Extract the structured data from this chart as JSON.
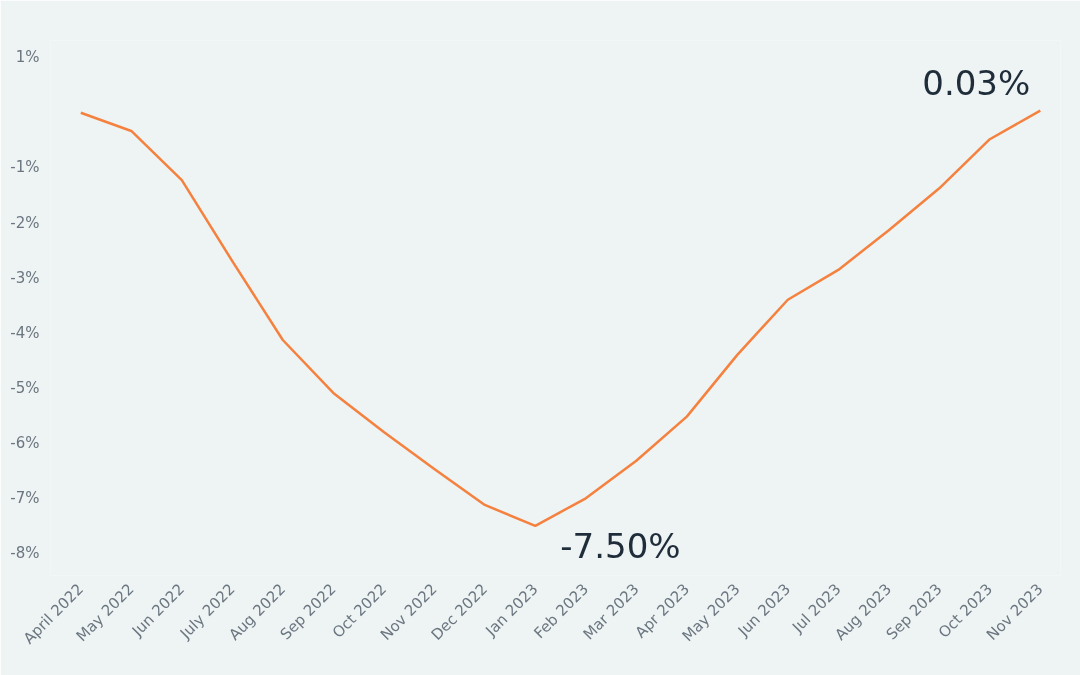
{
  "chart_data": {
    "type": "line",
    "categories": [
      "April 2022",
      "May 2022",
      "Jun 2022",
      "July 2022",
      "Aug 2022",
      "Sep 2022",
      "Oct 2022",
      "Nov 2022",
      "Dec 2022",
      "Jan 2023",
      "Feb 2023",
      "Mar 2023",
      "Apr 2023",
      "May 2023",
      "Jun 2023",
      "Jul 2023",
      "Aug 2023",
      "Sep 2023",
      "Oct 2023",
      "Nov 2023"
    ],
    "series": [
      {
        "color": "#f5813f",
        "values": [
          -0.01,
          -0.34,
          -1.23,
          -2.7,
          -4.13,
          -5.09,
          -5.8,
          -6.47,
          -7.12,
          -7.5,
          -7.0,
          -6.32,
          -5.52,
          -4.4,
          -3.4,
          -2.86,
          -2.14,
          -1.38,
          -0.49,
          0.03
        ],
        "value_labels": [
          null,
          null,
          null,
          null,
          null,
          null,
          null,
          null,
          null,
          "-7.50%",
          null,
          null,
          null,
          null,
          null,
          null,
          null,
          null,
          null,
          "0.03%"
        ]
      }
    ],
    "ylim": [
      -8.4,
      1.3
    ],
    "yticks": [
      {
        "value": 1,
        "label": "1%"
      },
      {
        "value": -1,
        "label": "-1%"
      },
      {
        "value": -2,
        "label": "-2%"
      },
      {
        "value": -3,
        "label": "-3%"
      },
      {
        "value": -4,
        "label": "-4%"
      },
      {
        "value": -5,
        "label": "-5%"
      },
      {
        "value": -6,
        "label": "-6%"
      },
      {
        "value": -7,
        "label": "-7%"
      },
      {
        "value": -8,
        "label": "-8%"
      }
    ],
    "grid": false,
    "marker": "none",
    "line_style": "solid"
  }
}
